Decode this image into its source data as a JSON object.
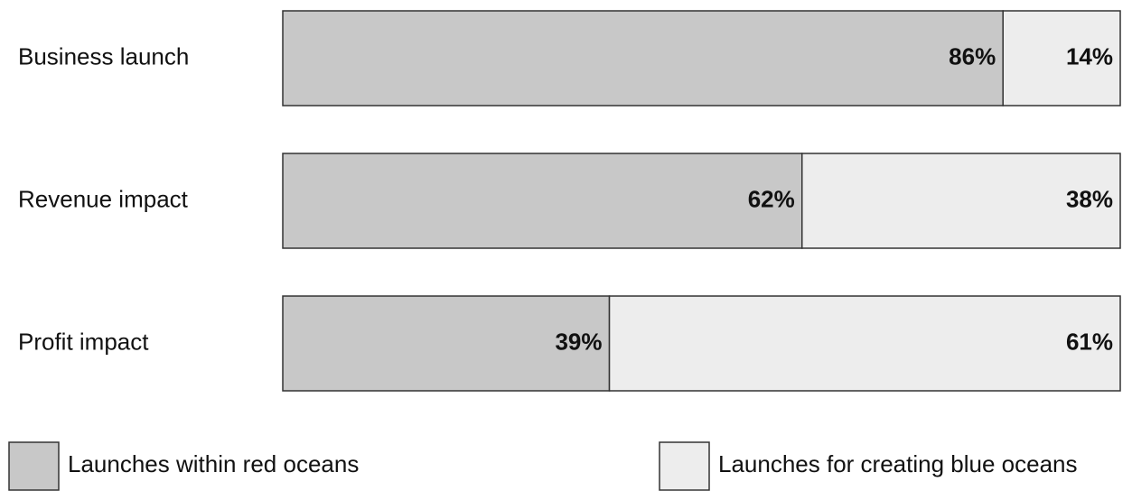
{
  "chart_data": {
    "type": "stacked_barh",
    "categories": [
      "Business launch",
      "Revenue impact",
      "Profit impact"
    ],
    "series": [
      {
        "name": "Launches within red oceans",
        "color": "#c8c8c8",
        "values": [
          86,
          62,
          39
        ],
        "value_labels": [
          "86%",
          "62%",
          "39%"
        ]
      },
      {
        "name": "Launches for creating blue oceans",
        "color": "#ededed",
        "values": [
          14,
          38,
          61
        ],
        "value_labels": [
          "14%",
          "38%",
          "61%"
        ]
      }
    ],
    "xlim": [
      0,
      100
    ]
  }
}
